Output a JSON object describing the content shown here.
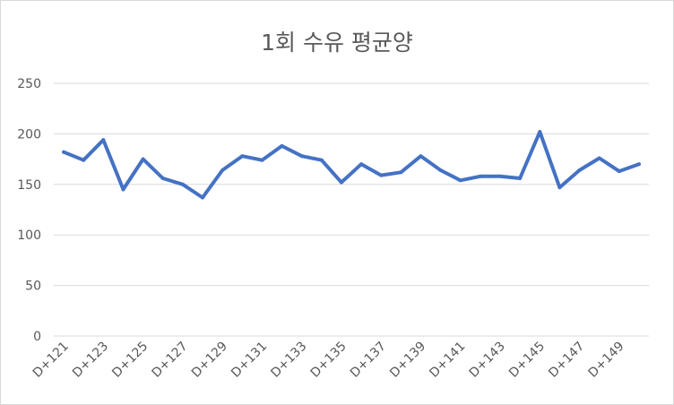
{
  "chart_data": {
    "type": "line",
    "title": "1회 수유 평균양",
    "xlabel": "",
    "ylabel": "",
    "ylim": [
      0,
      250
    ],
    "yticks": [
      0,
      50,
      100,
      150,
      200,
      250
    ],
    "grid": true,
    "legend": "none",
    "line_color": "#4472c4",
    "categories": [
      "D+121",
      "D+122",
      "D+123",
      "D+124",
      "D+125",
      "D+126",
      "D+127",
      "D+128",
      "D+129",
      "D+130",
      "D+131",
      "D+132",
      "D+133",
      "D+134",
      "D+135",
      "D+136",
      "D+137",
      "D+138",
      "D+139",
      "D+140",
      "D+141",
      "D+142",
      "D+143",
      "D+144",
      "D+145",
      "D+146",
      "D+147",
      "D+148",
      "D+149",
      "D+150"
    ],
    "tick_labels": [
      "D+121",
      "D+123",
      "D+125",
      "D+127",
      "D+129",
      "D+131",
      "D+133",
      "D+135",
      "D+137",
      "D+139",
      "D+141",
      "D+143",
      "D+145",
      "D+147",
      "D+149"
    ],
    "values": [
      182,
      174,
      194,
      145,
      175,
      156,
      150,
      137,
      164,
      178,
      174,
      188,
      178,
      174,
      152,
      170,
      159,
      162,
      178,
      164,
      154,
      158,
      158,
      156,
      202,
      147,
      164,
      176,
      163,
      170
    ]
  }
}
